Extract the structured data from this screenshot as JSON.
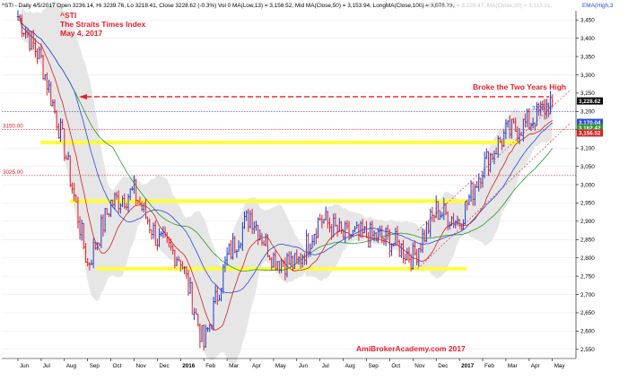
{
  "header": {
    "text": "^STI - Daily 4/5/2017 Open 3236.14, Hi 3239.76, Lo 3218.41, Close 3228.62 (-0.3%) Vol 0 MA(Low,13) = 3,156.52, Mid MA(Close,50) = 3,153.94, LongMA(Close,100) = 3,076.73,",
    "text_faded": "MA(Close,20) = 3,229.47, MA(Close,20) = 3,113.21,",
    "text_tail": "EMA(High,3"
  },
  "annotations": {
    "ticker": "^STI",
    "index_name": "The Straits Times Index",
    "date": "May 4, 2017",
    "broke_text": "Broke the Two Years High",
    "watermark": "AmiBrokerAcademy.com  2017"
  },
  "colors": {
    "up_bar": "#1f3fc8",
    "down_bar": "#e0202a",
    "ma_low13": "#d22020",
    "ma_mid50": "#2a4ad8",
    "ma_long100": "#2a9a2a",
    "band": "#c8c8c8",
    "support_line": "#ffff3c",
    "annotation_red": "#e0202a"
  },
  "chart_data": {
    "type": "line",
    "title": "^STI - Daily 4/5/2017",
    "ylim": [
      2525,
      3475
    ],
    "y_ticks": [
      2550,
      2600,
      2650,
      2700,
      2750,
      2800,
      2850,
      2900,
      2950,
      3000,
      3050,
      3100,
      3150,
      3200,
      3250,
      3300,
      3350,
      3400,
      3450
    ],
    "x_ticks": [
      "Jun",
      "Jul",
      "Aug",
      "Sep",
      "Oct",
      "Nov",
      "Dec",
      "2016",
      "Feb",
      "Mar",
      "Apr",
      "May",
      "Jun",
      "Jul",
      "Aug",
      "Sep",
      "Oct",
      "Nov",
      "Dec",
      "2017",
      "Feb",
      "Mar",
      "Apr",
      "May"
    ],
    "price_path": [
      {
        "x": "Jun",
        "y": 3460
      },
      {
        "x": "Jul",
        "y": 3340
      },
      {
        "x": "Aug",
        "y": 3100
      },
      {
        "x": "Sep",
        "y": 2780
      },
      {
        "x": "Oct",
        "y": 2950
      },
      {
        "x": "Nov",
        "y": 2980
      },
      {
        "x": "Dec",
        "y": 2850
      },
      {
        "x": "2016",
        "y": 2800
      },
      {
        "x": "Feb",
        "y": 2560
      },
      {
        "x": "Mar",
        "y": 2800
      },
      {
        "x": "Apr",
        "y": 2920
      },
      {
        "x": "May",
        "y": 2800
      },
      {
        "x": "Jun",
        "y": 2780
      },
      {
        "x": "Jul",
        "y": 2910
      },
      {
        "x": "Aug",
        "y": 2860
      },
      {
        "x": "Sep",
        "y": 2860
      },
      {
        "x": "Oct",
        "y": 2850
      },
      {
        "x": "Nov",
        "y": 2800
      },
      {
        "x": "Dec",
        "y": 2930
      },
      {
        "x": "2017",
        "y": 2900
      },
      {
        "x": "Feb",
        "y": 3050
      },
      {
        "x": "Mar",
        "y": 3140
      },
      {
        "x": "Apr",
        "y": 3170
      },
      {
        "x": "May",
        "y": 3228.62
      }
    ],
    "horizontal_lines": [
      {
        "label": "3150.00",
        "y": 3150,
        "color": "#e0202a",
        "style": "dotted"
      },
      {
        "label": "3025.00",
        "y": 3025,
        "color": "#e0202a",
        "style": "dotted"
      },
      {
        "label": "3200.00",
        "y": 3200,
        "color": "#2a4ad8",
        "style": "dotted"
      }
    ],
    "support_levels": [
      3115,
      2955,
      2770
    ],
    "right_labels": [
      {
        "value": "3,228.62",
        "y": 3228.62,
        "bg": "#000000",
        "fg": "#ffffff"
      },
      {
        "value": "3,170.04",
        "y": 3170.04,
        "bg": "#2a4ad8",
        "fg": "#ffffff"
      },
      {
        "value": "3,162.42",
        "y": 3155,
        "bg": "#2a9a2a",
        "fg": "#ffffff"
      },
      {
        "value": "3,156.52",
        "y": 3141,
        "bg": "#d22020",
        "fg": "#ffffff"
      }
    ]
  }
}
